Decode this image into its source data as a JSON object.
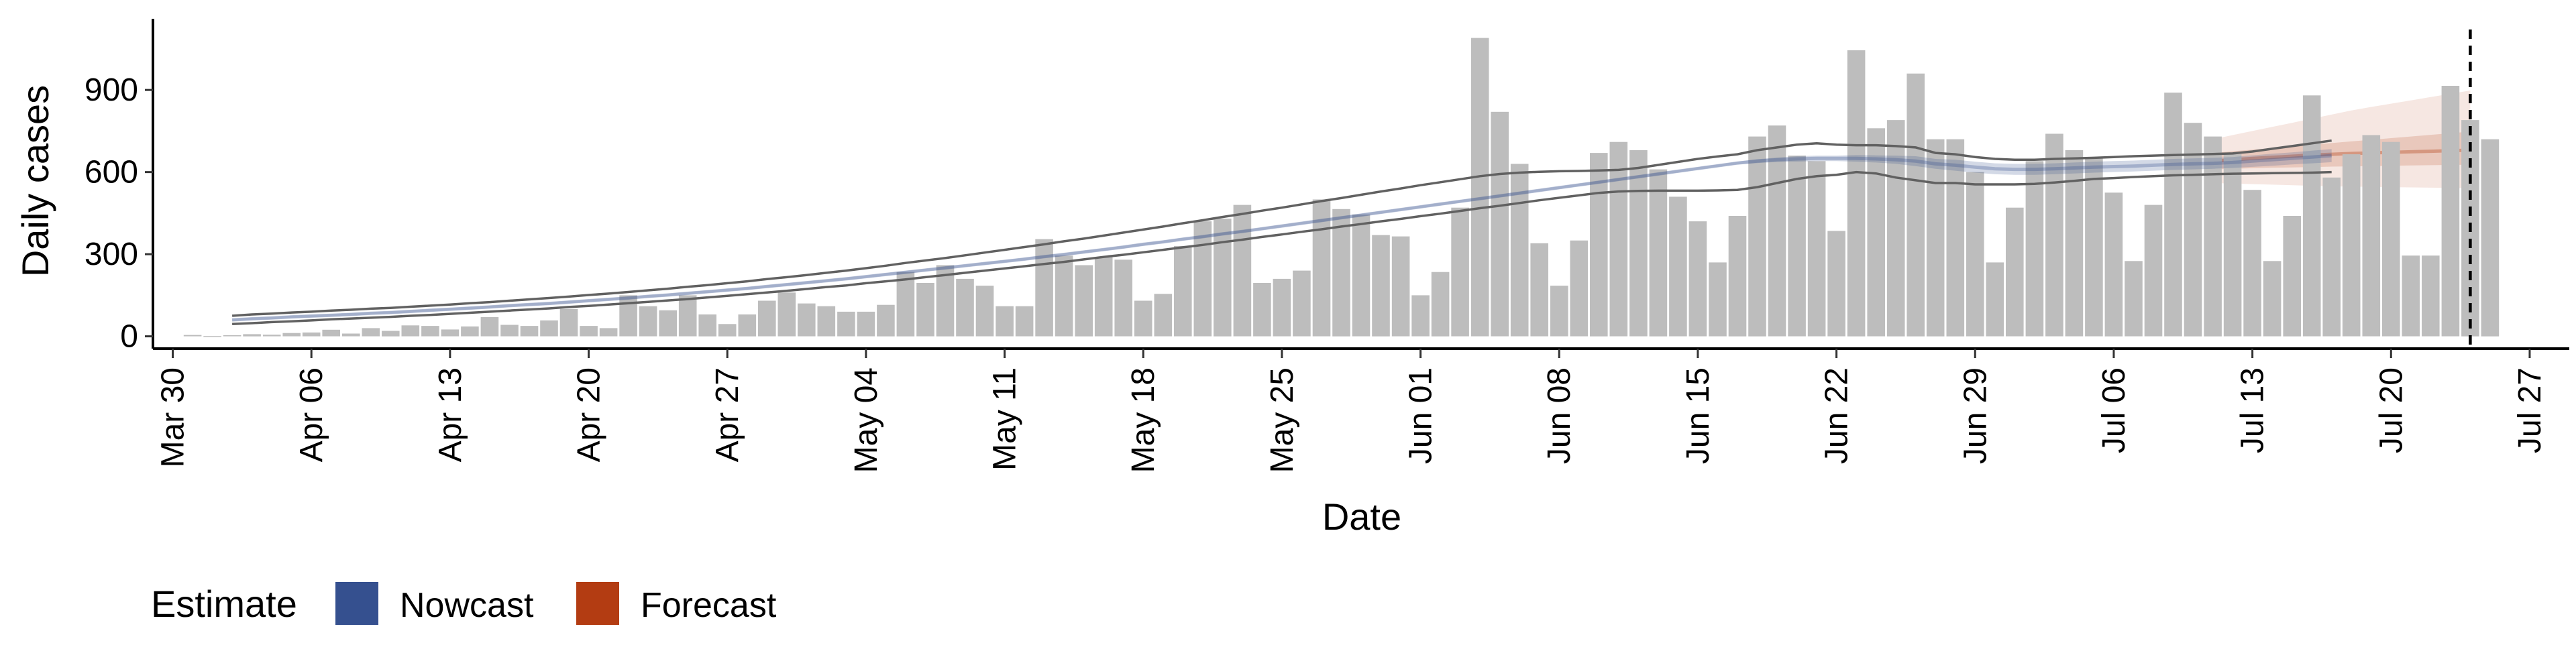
{
  "chart_data": {
    "type": "bar",
    "xlabel": "Date",
    "ylabel": "Daily cases",
    "ylim": [
      -45,
      1160
    ],
    "xlim": [
      "2020-03-29",
      "2020-07-29"
    ],
    "y_ticks": [
      0,
      300,
      600,
      900
    ],
    "x_ticks": [
      {
        "date": "2020-03-30",
        "label": "Mar 30"
      },
      {
        "date": "2020-04-06",
        "label": "Apr 06"
      },
      {
        "date": "2020-04-13",
        "label": "Apr 13"
      },
      {
        "date": "2020-04-20",
        "label": "Apr 20"
      },
      {
        "date": "2020-04-27",
        "label": "Apr 27"
      },
      {
        "date": "2020-05-04",
        "label": "May 04"
      },
      {
        "date": "2020-05-11",
        "label": "May 11"
      },
      {
        "date": "2020-05-18",
        "label": "May 18"
      },
      {
        "date": "2020-05-25",
        "label": "May 25"
      },
      {
        "date": "2020-06-01",
        "label": "Jun 01"
      },
      {
        "date": "2020-06-08",
        "label": "Jun 08"
      },
      {
        "date": "2020-06-15",
        "label": "Jun 15"
      },
      {
        "date": "2020-06-22",
        "label": "Jun 22"
      },
      {
        "date": "2020-06-29",
        "label": "Jun 29"
      },
      {
        "date": "2020-07-06",
        "label": "Jul 06"
      },
      {
        "date": "2020-07-13",
        "label": "Jul 13"
      },
      {
        "date": "2020-07-20",
        "label": "Jul 20"
      },
      {
        "date": "2020-07-27",
        "label": "Jul 27"
      }
    ],
    "grid": false,
    "bars": {
      "start_date": "2020-03-31",
      "color": "#bdbdbd",
      "values": [
        5,
        1,
        4,
        8,
        6,
        12,
        14,
        24,
        10,
        30,
        20,
        40,
        38,
        25,
        36,
        70,
        42,
        38,
        58,
        100,
        38,
        30,
        150,
        110,
        95,
        150,
        80,
        45,
        80,
        130,
        160,
        120,
        110,
        90,
        90,
        115,
        235,
        195,
        260,
        210,
        185,
        110,
        110,
        355,
        295,
        260,
        290,
        280,
        130,
        155,
        330,
        420,
        430,
        480,
        195,
        210,
        240,
        500,
        465,
        445,
        370,
        365,
        150,
        235,
        470,
        1090,
        820,
        630,
        340,
        185,
        350,
        670,
        710,
        680,
        610,
        510,
        420,
        270,
        440,
        730,
        770,
        660,
        640,
        385,
        1045,
        760,
        790,
        960,
        720,
        720,
        600,
        270,
        470,
        640,
        740,
        680,
        650,
        525,
        275,
        480,
        890,
        780,
        730,
        665,
        535,
        275,
        440,
        880,
        580,
        665,
        735,
        710,
        295,
        295,
        915,
        790,
        720
      ]
    },
    "cutoff_date": "2020-07-24",
    "legend": {
      "title": "Estimate",
      "position": "bottom-left",
      "items": [
        {
          "label": "Nowcast",
          "color": "#35508f"
        },
        {
          "label": "Forecast",
          "color": "#b33c12"
        }
      ]
    },
    "nowcast": {
      "start_date": "2020-04-02",
      "color": "#35508f",
      "outer_color": "#616161",
      "median": [
        60,
        64,
        67,
        71,
        74,
        77,
        80,
        84,
        87,
        91,
        95,
        99,
        103,
        107,
        112,
        116,
        120,
        125,
        130,
        135,
        140,
        146,
        151,
        157,
        163,
        169,
        175,
        182,
        189,
        196,
        203,
        210,
        218,
        226,
        234,
        242,
        250,
        258,
        266,
        274,
        282,
        291,
        299,
        308,
        317,
        326,
        336,
        345,
        355,
        364,
        374,
        383,
        393,
        403,
        413,
        423,
        433,
        443,
        453,
        463,
        473,
        483,
        493,
        503,
        513,
        523,
        533,
        543,
        553,
        563,
        573,
        583,
        593,
        603,
        613,
        623,
        633,
        640,
        645,
        648,
        650,
        650,
        650,
        648,
        645,
        640,
        630,
        625,
        618,
        612,
        610,
        610,
        612,
        615,
        618,
        620,
        622,
        625,
        628,
        630,
        632,
        635,
        640,
        645,
        650,
        655,
        660
      ],
      "inner_low": [
        55,
        59,
        62,
        66,
        69,
        72,
        75,
        79,
        82,
        86,
        90,
        94,
        98,
        102,
        107,
        111,
        115,
        120,
        125,
        130,
        135,
        141,
        146,
        152,
        158,
        164,
        170,
        177,
        184,
        191,
        198,
        205,
        213,
        221,
        229,
        237,
        245,
        253,
        261,
        269,
        277,
        286,
        294,
        303,
        312,
        321,
        331,
        340,
        350,
        359,
        369,
        378,
        388,
        398,
        408,
        418,
        428,
        438,
        448,
        458,
        468,
        478,
        488,
        498,
        508,
        518,
        528,
        538,
        548,
        558,
        568,
        578,
        588,
        598,
        608,
        618,
        628,
        633,
        637,
        638,
        640,
        640,
        638,
        635,
        630,
        622,
        612,
        605,
        598,
        592,
        590,
        590,
        592,
        595,
        598,
        600,
        602,
        605,
        608,
        610,
        612,
        615,
        619,
        623,
        628,
        632,
        636
      ],
      "inner_high": [
        65,
        69,
        72,
        76,
        79,
        82,
        85,
        89,
        92,
        96,
        100,
        104,
        108,
        112,
        117,
        121,
        125,
        130,
        135,
        140,
        145,
        151,
        156,
        162,
        168,
        174,
        180,
        187,
        194,
        201,
        208,
        215,
        223,
        231,
        239,
        247,
        255,
        263,
        271,
        279,
        287,
        296,
        304,
        313,
        322,
        331,
        341,
        350,
        360,
        369,
        379,
        388,
        398,
        408,
        418,
        428,
        438,
        448,
        458,
        468,
        478,
        488,
        498,
        508,
        518,
        528,
        538,
        548,
        558,
        568,
        578,
        588,
        598,
        608,
        618,
        628,
        638,
        647,
        653,
        658,
        660,
        660,
        662,
        661,
        660,
        658,
        648,
        645,
        638,
        632,
        630,
        630,
        632,
        635,
        638,
        640,
        642,
        645,
        648,
        650,
        652,
        655,
        661,
        667,
        672,
        678,
        684
      ],
      "outer_low": [
        45,
        48,
        52,
        55,
        58,
        62,
        65,
        68,
        71,
        75,
        78,
        82,
        86,
        90,
        94,
        98,
        102,
        107,
        111,
        116,
        121,
        126,
        131,
        136,
        142,
        148,
        154,
        160,
        166,
        173,
        180,
        186,
        194,
        201,
        208,
        216,
        224,
        232,
        240,
        248,
        256,
        264,
        272,
        281,
        290,
        298,
        307,
        316,
        325,
        334,
        344,
        353,
        363,
        372,
        382,
        391,
        401,
        410,
        420,
        429,
        439,
        448,
        458,
        468,
        477,
        487,
        497,
        506,
        515,
        524,
        529,
        531,
        532,
        532,
        532,
        533,
        535,
        545,
        560,
        575,
        585,
        590,
        600,
        595,
        580,
        570,
        560,
        560,
        555,
        555,
        555,
        557,
        562,
        568,
        575,
        578,
        582,
        585,
        588,
        590,
        592,
        594,
        595,
        596,
        597,
        598,
        600
      ],
      "outer_high": [
        75,
        80,
        83,
        87,
        90,
        94,
        97,
        101,
        104,
        108,
        112,
        116,
        121,
        125,
        130,
        135,
        140,
        145,
        151,
        156,
        162,
        168,
        174,
        181,
        187,
        194,
        201,
        209,
        216,
        224,
        232,
        240,
        249,
        258,
        268,
        277,
        286,
        296,
        306,
        316,
        326,
        336,
        347,
        357,
        368,
        379,
        390,
        401,
        413,
        424,
        436,
        447,
        459,
        470,
        482,
        494,
        505,
        517,
        529,
        540,
        552,
        563,
        574,
        585,
        593,
        598,
        601,
        603,
        604,
        606,
        608,
        615,
        626,
        637,
        648,
        657,
        665,
        680,
        690,
        700,
        705,
        700,
        698,
        698,
        695,
        690,
        670,
        665,
        655,
        648,
        645,
        645,
        648,
        650,
        652,
        655,
        658,
        660,
        662,
        664,
        666,
        668,
        675,
        685,
        695,
        705,
        715
      ]
    },
    "forecast": {
      "start_date": "2020-07-11",
      "color": "#b33c12",
      "median": [
        640,
        645,
        650,
        654,
        658,
        662,
        665,
        668,
        670,
        672,
        674,
        676,
        678,
        680
      ],
      "inner_low": [
        610,
        612,
        614,
        616,
        617,
        618,
        620,
        621,
        622,
        623,
        624,
        625,
        626,
        627
      ],
      "inner_high": [
        670,
        676,
        682,
        688,
        694,
        700,
        706,
        712,
        718,
        724,
        730,
        736,
        742,
        748
      ],
      "outer_low": [
        560,
        558,
        556,
        554,
        552,
        550,
        548,
        547,
        546,
        545,
        544,
        543,
        542,
        541
      ],
      "outer_high": [
        720,
        735,
        750,
        765,
        780,
        795,
        810,
        825,
        838,
        850,
        862,
        874,
        886,
        898
      ]
    }
  }
}
